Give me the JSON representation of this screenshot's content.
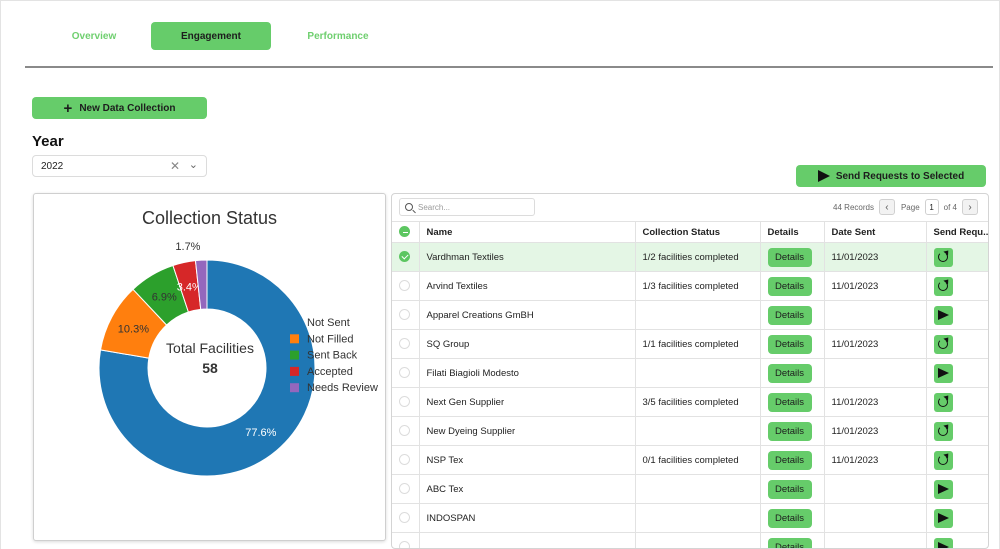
{
  "tabs": [
    {
      "label": "Overview",
      "active": false
    },
    {
      "label": "Engagement",
      "active": true
    },
    {
      "label": "Performance",
      "active": false
    }
  ],
  "new_button": {
    "label": "New Data Collection",
    "icon": "plus-icon"
  },
  "year": {
    "label": "Year",
    "value": "2022"
  },
  "send_selected_button": {
    "label": "Send Requests to Selected",
    "icon": "send-icon"
  },
  "colors": {
    "accent": "#66cc6a",
    "not_sent": "#1f77b4",
    "not_filled": "#ff7f0e",
    "sent_back": "#2ca02c",
    "accepted": "#d62728",
    "needs_review": "#9467bd"
  },
  "chart_data": {
    "type": "pie",
    "title": "Collection Status",
    "center_label": "Total Facilities",
    "center_value": "58",
    "categories": [
      "Not Sent",
      "Not Filled",
      "Sent Back",
      "Accepted",
      "Needs Review"
    ],
    "values": [
      77.6,
      10.3,
      6.9,
      3.4,
      1.7
    ],
    "labels": [
      "77.6%",
      "10.3%",
      "6.9%",
      "3.4%",
      "1.7%"
    ],
    "colors": [
      "#1f77b4",
      "#ff7f0e",
      "#2ca02c",
      "#d62728",
      "#9467bd"
    ],
    "legend_position": "right"
  },
  "table": {
    "search_placeholder": "Search...",
    "records_text": "44 Records",
    "page_label": "Page",
    "page_value": "1",
    "page_total": "of 4",
    "columns": [
      "Name",
      "Collection Status",
      "Details",
      "Date Sent",
      "Send Requ..."
    ],
    "details_label": "Details",
    "rows": [
      {
        "name": "Vardhman Textiles",
        "status": "1/2 facilities completed",
        "date": "11/01/2023",
        "action": "refresh",
        "selected": true
      },
      {
        "name": "Arvind Textiles",
        "status": "1/3 facilities completed",
        "date": "11/01/2023",
        "action": "refresh",
        "selected": false
      },
      {
        "name": "Apparel Creations GmBH",
        "status": "",
        "date": "",
        "action": "send",
        "selected": false
      },
      {
        "name": "SQ Group",
        "status": "1/1 facilities completed",
        "date": "11/01/2023",
        "action": "refresh",
        "selected": false
      },
      {
        "name": "Filati Biagioli Modesto",
        "status": "",
        "date": "",
        "action": "send",
        "selected": false
      },
      {
        "name": "Next Gen Supplier",
        "status": "3/5 facilities completed",
        "date": "11/01/2023",
        "action": "refresh",
        "selected": false
      },
      {
        "name": "New Dyeing Supplier",
        "status": "",
        "date": "11/01/2023",
        "action": "refresh",
        "selected": false
      },
      {
        "name": "NSP Tex",
        "status": "0/1 facilities completed",
        "date": "11/01/2023",
        "action": "refresh",
        "selected": false
      },
      {
        "name": "ABC Tex",
        "status": "",
        "date": "",
        "action": "send",
        "selected": false
      },
      {
        "name": "INDOSPAN",
        "status": "",
        "date": "",
        "action": "send",
        "selected": false
      },
      {
        "name": "",
        "status": "",
        "date": "",
        "action": "send",
        "selected": false
      }
    ]
  }
}
